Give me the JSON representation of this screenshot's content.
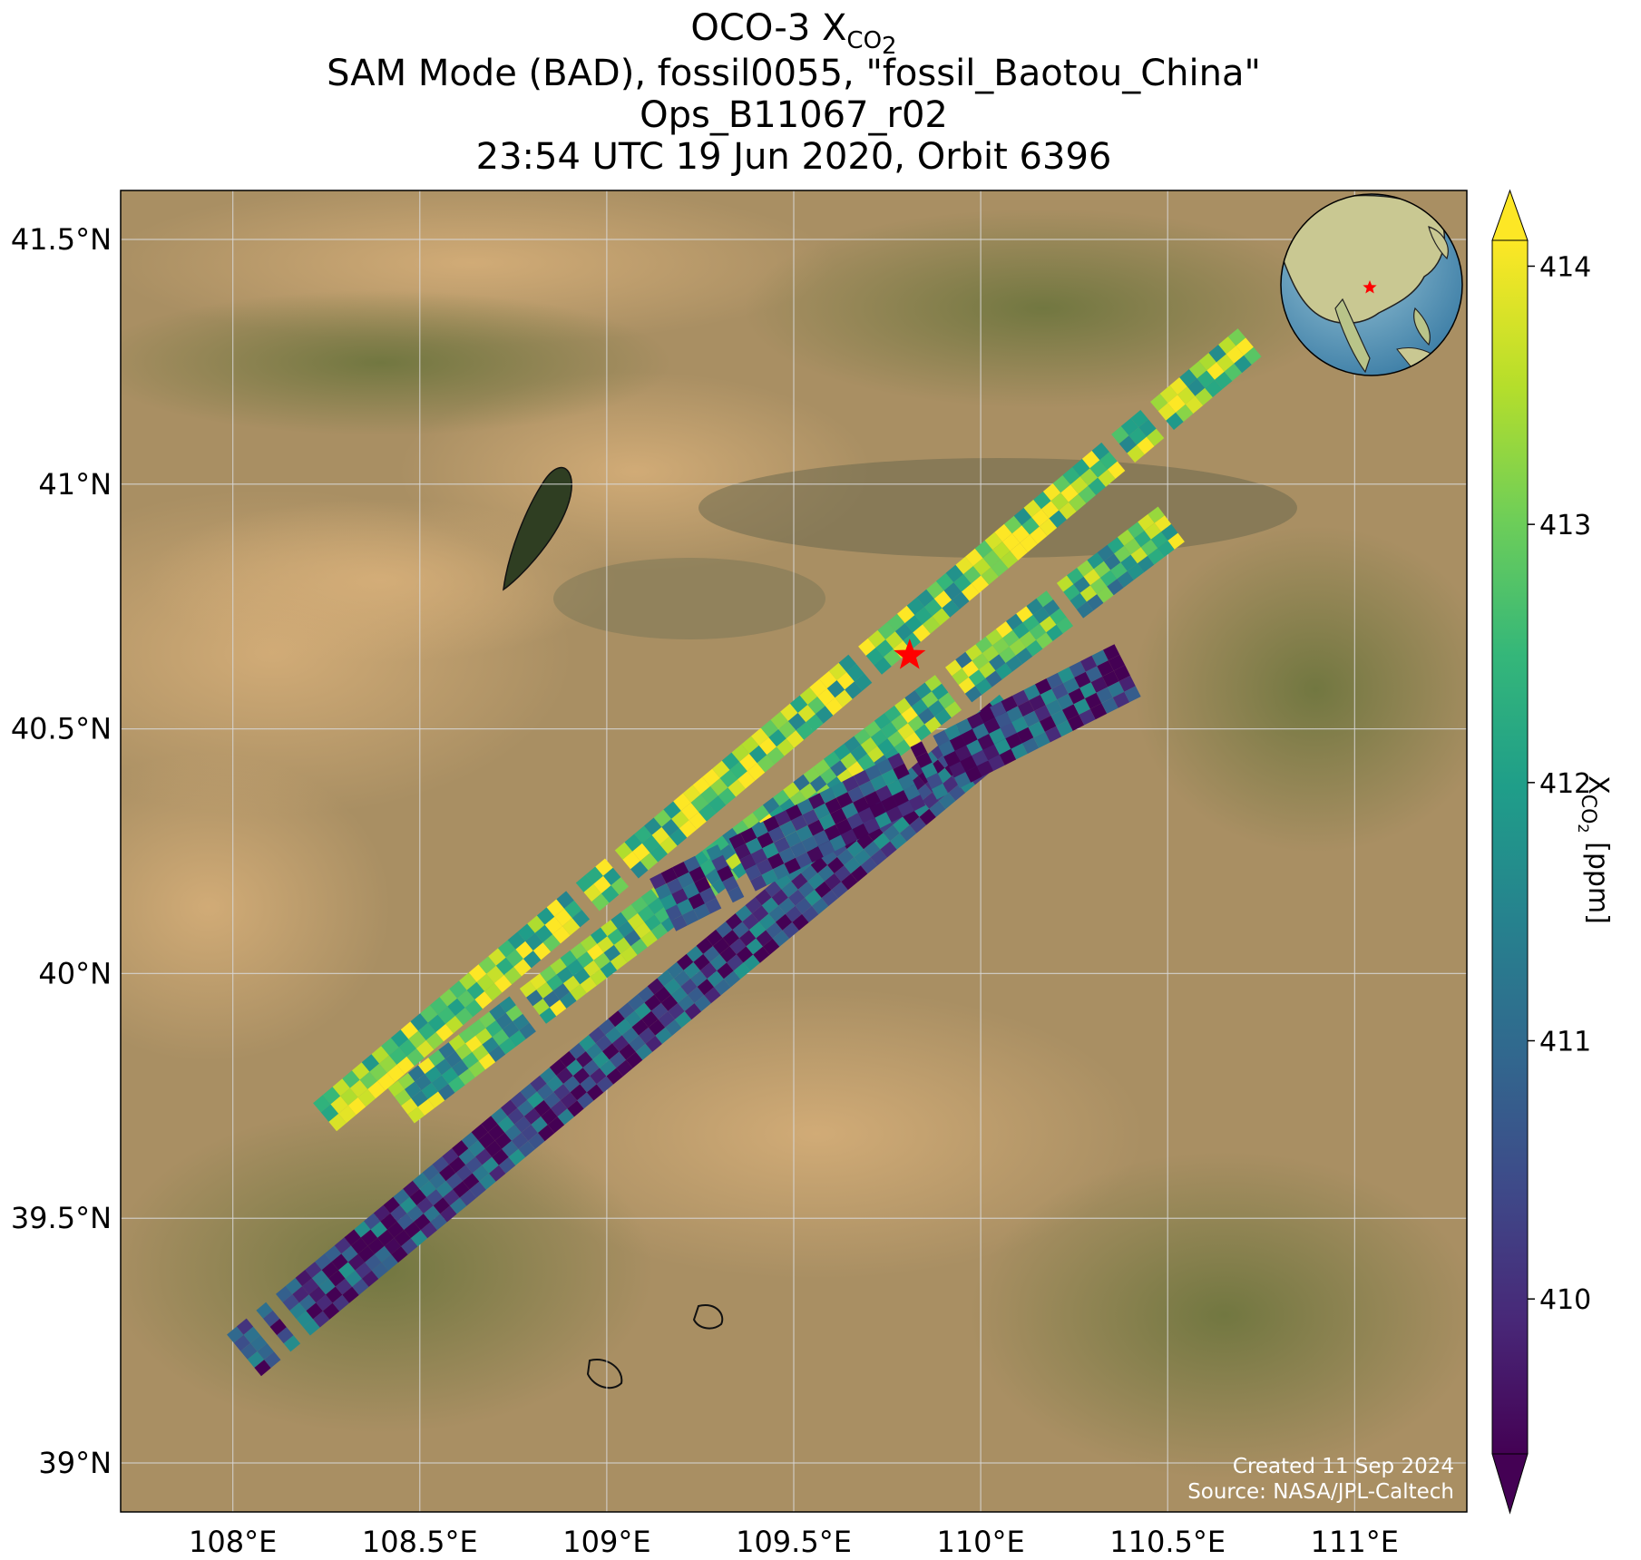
{
  "title": {
    "line1_main": "OCO-3 X",
    "line1_sub": "CO",
    "line1_sub2": "2",
    "line2": "SAM Mode (BAD), fossil0055, \"fossil_Baotou_China\"",
    "line3": "Ops_B11067_r02",
    "line4": "23:54 UTC 19 Jun 2020, Orbit 6396"
  },
  "map": {
    "lon_range": [
      107.7,
      111.3
    ],
    "lat_range": [
      38.9,
      41.6
    ],
    "x_ticks": [
      {
        "value": 108.0,
        "label": "108°E"
      },
      {
        "value": 108.5,
        "label": "108.5°E"
      },
      {
        "value": 109.0,
        "label": "109°E"
      },
      {
        "value": 109.5,
        "label": "109.5°E"
      },
      {
        "value": 110.0,
        "label": "110°E"
      },
      {
        "value": 110.5,
        "label": "110.5°E"
      },
      {
        "value": 111.0,
        "label": "111°E"
      }
    ],
    "y_ticks": [
      {
        "value": 39.0,
        "label": "39°N"
      },
      {
        "value": 39.5,
        "label": "39.5°N"
      },
      {
        "value": 40.0,
        "label": "40°N"
      },
      {
        "value": 40.5,
        "label": "40.5°N"
      },
      {
        "value": 41.0,
        "label": "41°N"
      },
      {
        "value": 41.5,
        "label": "41.5°N"
      }
    ],
    "grid": true,
    "background": "satellite imagery",
    "target_marker": {
      "icon": "red-star-icon",
      "lon": 109.81,
      "lat": 40.65,
      "color": "#ff0000"
    },
    "credit_line1": "Created 11 Sep 2024",
    "credit_line2": "Source: NASA/JPL-Caltech",
    "inset_globe": {
      "icon": "globe-icon",
      "marker_color": "#ff0000"
    }
  },
  "chart_data": {
    "type": "heatmap",
    "description_values": "XCO2 swath soundings over target",
    "colormap": "viridis",
    "colorbar": {
      "label_main": "X",
      "label_sub": "CO",
      "label_sub2": "2",
      "label_units": " [ppm]",
      "range": [
        409.4,
        414.1
      ],
      "ticks": [
        410,
        411,
        412,
        413,
        414
      ],
      "extend": "both"
    },
    "swaths": [
      {
        "start": [
          108.22,
          39.69
        ],
        "end": [
          110.72,
          41.29
        ],
        "width_deg": 0.075,
        "mean": 413.1
      },
      {
        "start": [
          108.45,
          39.73
        ],
        "end": [
          110.53,
          40.93
        ],
        "width_deg": 0.09,
        "mean": 412.6
      },
      {
        "start": [
          108.03,
          39.22
        ],
        "end": [
          110.1,
          40.53
        ],
        "width_deg": 0.11,
        "mean": 410.3
      },
      {
        "start": [
          109.15,
          40.14
        ],
        "end": [
          110.42,
          40.63
        ],
        "width_deg": 0.12,
        "mean": 410.2
      }
    ]
  }
}
